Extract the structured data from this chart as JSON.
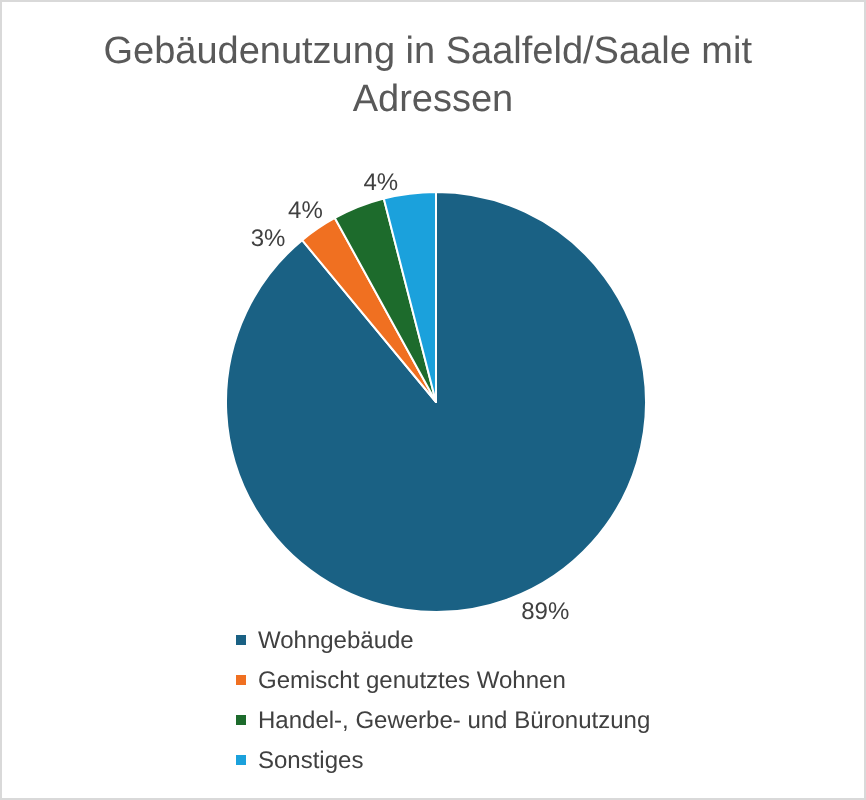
{
  "chart_data": {
    "type": "pie",
    "title": "Gebäudenutzung in Saalfeld/Saale mit Adressen",
    "categories": [
      "Wohngebäude",
      "Gemischt genutztes Wohnen",
      "Handel-, Gewerbe- und Büronutzung",
      "Sonstiges"
    ],
    "values": [
      89,
      3,
      4,
      4
    ],
    "colors": [
      "#1a6184",
      "#f07021",
      "#1d6b2c",
      "#1ba1dc"
    ],
    "value_labels": [
      "89%",
      "3%",
      "4%",
      "4%"
    ],
    "legend": "bottom"
  }
}
